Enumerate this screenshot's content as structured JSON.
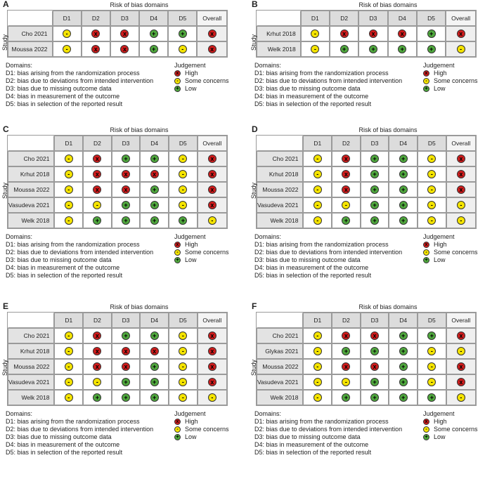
{
  "chart_data": [
    {
      "type": "table",
      "panel": "A",
      "title": "Risk of bias domains",
      "row_axis_label": "Study",
      "columns": [
        "D1",
        "D2",
        "D3",
        "D4",
        "D5",
        "Overall"
      ],
      "studies": [
        {
          "name": "Cho 2021",
          "judgements": [
            "some",
            "high",
            "high",
            "low",
            "low",
            "high"
          ]
        },
        {
          "name": "Moussa 2022",
          "judgements": [
            "some",
            "high",
            "high",
            "low",
            "some",
            "high"
          ]
        }
      ]
    },
    {
      "type": "table",
      "panel": "B",
      "title": "Risk of bias domains",
      "row_axis_label": "Study",
      "columns": [
        "D1",
        "D2",
        "D3",
        "D4",
        "D5",
        "Overall"
      ],
      "studies": [
        {
          "name": "Krhut 2018",
          "judgements": [
            "some",
            "high",
            "high",
            "high",
            "low",
            "high"
          ]
        },
        {
          "name": "Welk 2018",
          "judgements": [
            "some",
            "low",
            "low",
            "low",
            "low",
            "some"
          ]
        }
      ]
    },
    {
      "type": "table",
      "panel": "C",
      "title": "Risk of bias domains",
      "row_axis_label": "Study",
      "columns": [
        "D1",
        "D2",
        "D3",
        "D4",
        "D5",
        "Overall"
      ],
      "studies": [
        {
          "name": "Cho 2021",
          "judgements": [
            "some",
            "high",
            "low",
            "low",
            "some",
            "high"
          ]
        },
        {
          "name": "Krhut 2018",
          "judgements": [
            "some",
            "high",
            "high",
            "high",
            "some",
            "high"
          ]
        },
        {
          "name": "Moussa 2022",
          "judgements": [
            "some",
            "high",
            "high",
            "low",
            "some",
            "high"
          ]
        },
        {
          "name": "Vasudeva 2021",
          "judgements": [
            "some",
            "some",
            "low",
            "low",
            "some",
            "high"
          ]
        },
        {
          "name": "Welk 2018",
          "judgements": [
            "some",
            "low",
            "low",
            "low",
            "low",
            "some"
          ]
        }
      ]
    },
    {
      "type": "table",
      "panel": "D",
      "title": "Risk of bias domains",
      "row_axis_label": "Study",
      "columns": [
        "D1",
        "D2",
        "D3",
        "D4",
        "D5",
        "Overall"
      ],
      "studies": [
        {
          "name": "Cho 2021",
          "judgements": [
            "some",
            "high",
            "low",
            "low",
            "some",
            "high"
          ]
        },
        {
          "name": "Krhut 2018",
          "judgements": [
            "some",
            "high",
            "low",
            "low",
            "some",
            "high"
          ]
        },
        {
          "name": "Moussa 2022",
          "judgements": [
            "some",
            "high",
            "low",
            "low",
            "some",
            "high"
          ]
        },
        {
          "name": "Vasudeva 2021",
          "judgements": [
            "some",
            "some",
            "low",
            "low",
            "some",
            "some"
          ]
        },
        {
          "name": "Welk 2018",
          "judgements": [
            "some",
            "low",
            "low",
            "low",
            "some",
            "some"
          ]
        }
      ]
    },
    {
      "type": "table",
      "panel": "E",
      "title": "Risk of bias domains",
      "row_axis_label": "Study",
      "columns": [
        "D1",
        "D2",
        "D3",
        "D4",
        "D5",
        "Overall"
      ],
      "studies": [
        {
          "name": "Cho 2021",
          "judgements": [
            "some",
            "high",
            "low",
            "low",
            "some",
            "high"
          ]
        },
        {
          "name": "Krhut 2018",
          "judgements": [
            "some",
            "high",
            "high",
            "high",
            "some",
            "high"
          ]
        },
        {
          "name": "Moussa 2022",
          "judgements": [
            "some",
            "high",
            "high",
            "low",
            "some",
            "high"
          ]
        },
        {
          "name": "Vasudeva 2021",
          "judgements": [
            "some",
            "some",
            "low",
            "low",
            "some",
            "high"
          ]
        },
        {
          "name": "Welk 2018",
          "judgements": [
            "some",
            "low",
            "low",
            "low",
            "some",
            "some"
          ]
        }
      ]
    },
    {
      "type": "table",
      "panel": "F",
      "title": "Risk of bias domains",
      "row_axis_label": "Study",
      "columns": [
        "D1",
        "D2",
        "D3",
        "D4",
        "D5",
        "Overall"
      ],
      "studies": [
        {
          "name": "Cho 2021",
          "judgements": [
            "some",
            "high",
            "high",
            "low",
            "low",
            "high"
          ]
        },
        {
          "name": "Glykas 2021",
          "judgements": [
            "some",
            "low",
            "low",
            "low",
            "some",
            "some"
          ]
        },
        {
          "name": "Moussa 2022",
          "judgements": [
            "some",
            "high",
            "high",
            "low",
            "some",
            "high"
          ]
        },
        {
          "name": "Vasudeva 2021",
          "judgements": [
            "some",
            "some",
            "low",
            "low",
            "some",
            "high"
          ]
        },
        {
          "name": "Welk 2018",
          "judgements": [
            "some",
            "low",
            "low",
            "low",
            "low",
            "some"
          ]
        }
      ]
    }
  ],
  "legend": {
    "domains_heading": "Domains:",
    "domains": [
      "D1: bias arising from the randomization process",
      "D2: bias due to deviations from intended intervention",
      "D3: bias due to missing outcome data",
      "D4: bias in measurement of the outcome",
      "D5: bias in selection of the reported result"
    ],
    "judgement_heading": "Judgement",
    "judgements": [
      {
        "key": "high",
        "label": "High",
        "symbol": "x"
      },
      {
        "key": "some",
        "label": "Some concerns",
        "symbol": "-"
      },
      {
        "key": "low",
        "label": "Low",
        "symbol": "+"
      }
    ]
  },
  "colors": {
    "high": "#d01c1c",
    "some": "#f5e400",
    "low": "#4fa83d"
  }
}
